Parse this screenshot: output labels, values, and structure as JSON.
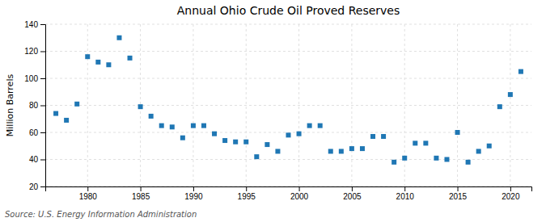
{
  "chart_data": {
    "type": "scatter",
    "title": "Annual Ohio Crude Oil Proved Reserves",
    "ylabel": "Million Barrels",
    "annotation": "Source: U.S. Energy Information Administration",
    "x": [
      1977,
      1978,
      1979,
      1980,
      1981,
      1982,
      1983,
      1984,
      1985,
      1986,
      1987,
      1988,
      1989,
      1990,
      1991,
      1992,
      1993,
      1994,
      1995,
      1996,
      1997,
      1998,
      1999,
      2000,
      2001,
      2002,
      2003,
      2004,
      2005,
      2006,
      2007,
      2008,
      2009,
      2010,
      2011,
      2012,
      2013,
      2014,
      2015,
      2016,
      2017,
      2018,
      2019,
      2020,
      2021
    ],
    "values": [
      74,
      69,
      81,
      116,
      112,
      110,
      130,
      115,
      79,
      72,
      65,
      64,
      56,
      65,
      65,
      59,
      54,
      53,
      53,
      42,
      51,
      46,
      58,
      59,
      65,
      65,
      46,
      46,
      48,
      48,
      57,
      57,
      38,
      41,
      52,
      52,
      41,
      40,
      60,
      38,
      46,
      50,
      79,
      88,
      105
    ],
    "marker": "square",
    "xlim": [
      1976,
      2022
    ],
    "xticks": [
      1980,
      1985,
      1990,
      1995,
      2000,
      2005,
      2010,
      2015,
      2020
    ],
    "ylim": [
      20,
      140
    ],
    "yticks": [
      20,
      40,
      60,
      80,
      100,
      120,
      140
    ],
    "grid": true
  }
}
